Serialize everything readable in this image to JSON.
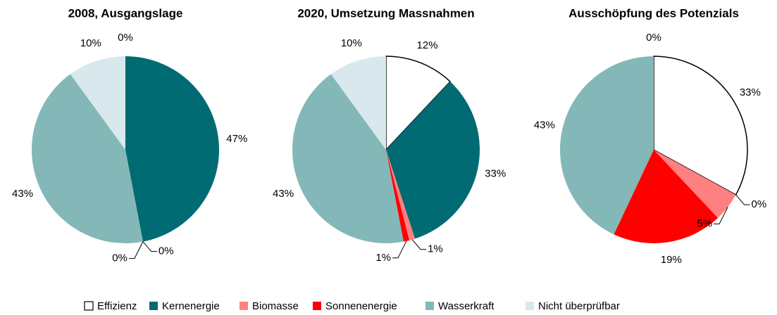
{
  "chart_data": [
    {
      "type": "pie",
      "title": "2008, Ausgangslage",
      "categories": [
        "Effizienz",
        "Kernenergie",
        "Biomasse",
        "Sonnenenergie",
        "Wasserkraft",
        "Nicht überprüfbar"
      ],
      "colors": [
        "#ffffff",
        "#006b73",
        "#ff8080",
        "#ff0000",
        "#84b8b8",
        "#d9e8ec"
      ],
      "values": [
        0,
        47,
        0,
        0,
        43,
        10
      ],
      "value_labels": [
        "0%",
        "47%",
        "0%",
        "0%",
        "43%",
        "10%"
      ]
    },
    {
      "type": "pie",
      "title": "2020, Umsetzung Massnahmen",
      "categories": [
        "Effizienz",
        "Kernenergie",
        "Biomasse",
        "Sonnenenergie",
        "Wasserkraft",
        "Nicht überprüfbar"
      ],
      "colors": [
        "#ffffff",
        "#006b73",
        "#ff8080",
        "#ff0000",
        "#84b8b8",
        "#d9e8ec"
      ],
      "values": [
        12,
        33,
        1,
        1,
        43,
        10
      ],
      "value_labels": [
        "12%",
        "33%",
        "1%",
        "1%",
        "43%",
        "10%"
      ]
    },
    {
      "type": "pie",
      "title": "Ausschöpfung des Potenzials",
      "categories": [
        "Effizienz",
        "Kernenergie",
        "Biomasse",
        "Sonnenenergie",
        "Wasserkraft",
        "Nicht überprüfbar"
      ],
      "colors": [
        "#ffffff",
        "#006b73",
        "#ff8080",
        "#ff0000",
        "#84b8b8",
        "#d9e8ec"
      ],
      "values": [
        33,
        0,
        5,
        19,
        43,
        0
      ],
      "value_labels": [
        "33%",
        "0%",
        "5%",
        "19%",
        "43%",
        "0%"
      ]
    }
  ]
}
